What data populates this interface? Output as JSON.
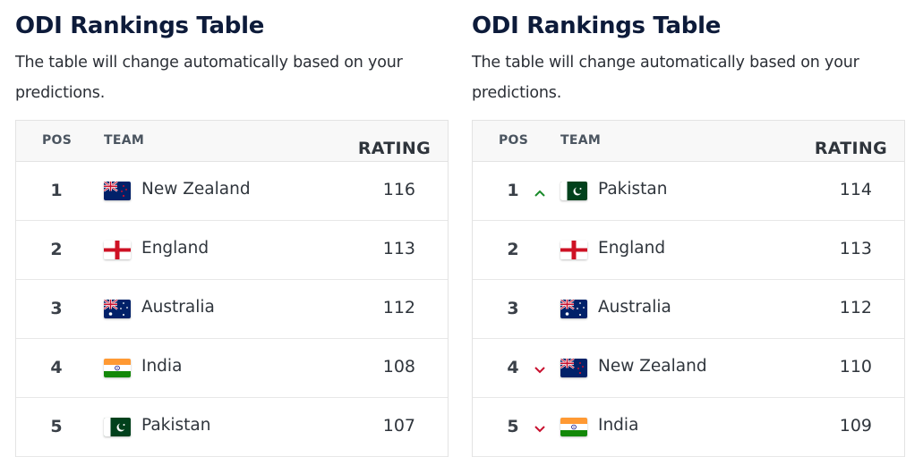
{
  "panels": [
    {
      "title": "ODI Rankings Table",
      "subtitle": "The table will change automatically based on your predictions.",
      "columns": {
        "pos": "POS",
        "team": "TEAM",
        "rating": "RATING"
      },
      "rows": [
        {
          "pos": "1",
          "team": "New Zealand",
          "flag": "nz-flag",
          "rating": "116",
          "change": "none"
        },
        {
          "pos": "2",
          "team": "England",
          "flag": "england-flag",
          "rating": "113",
          "change": "none"
        },
        {
          "pos": "3",
          "team": "Australia",
          "flag": "australia-flag",
          "rating": "112",
          "change": "none"
        },
        {
          "pos": "4",
          "team": "India",
          "flag": "india-flag",
          "rating": "108",
          "change": "none"
        },
        {
          "pos": "5",
          "team": "Pakistan",
          "flag": "pakistan-flag",
          "rating": "107",
          "change": "none"
        }
      ]
    },
    {
      "title": "ODI Rankings Table",
      "subtitle": "The table will change automatically based on your predictions.",
      "columns": {
        "pos": "POS",
        "team": "TEAM",
        "rating": "RATING"
      },
      "rows": [
        {
          "pos": "1",
          "team": "Pakistan",
          "flag": "pakistan-flag",
          "rating": "114",
          "change": "up"
        },
        {
          "pos": "2",
          "team": "England",
          "flag": "england-flag",
          "rating": "113",
          "change": "none"
        },
        {
          "pos": "3",
          "team": "Australia",
          "flag": "australia-flag",
          "rating": "112",
          "change": "none"
        },
        {
          "pos": "4",
          "team": "New Zealand",
          "flag": "nz-flag",
          "rating": "110",
          "change": "down"
        },
        {
          "pos": "5",
          "team": "India",
          "flag": "india-flag",
          "rating": "109",
          "change": "down"
        }
      ]
    }
  ],
  "colors": {
    "up": "#1a8a2a",
    "down": "#c8102e",
    "title": "#0d1b3a"
  }
}
